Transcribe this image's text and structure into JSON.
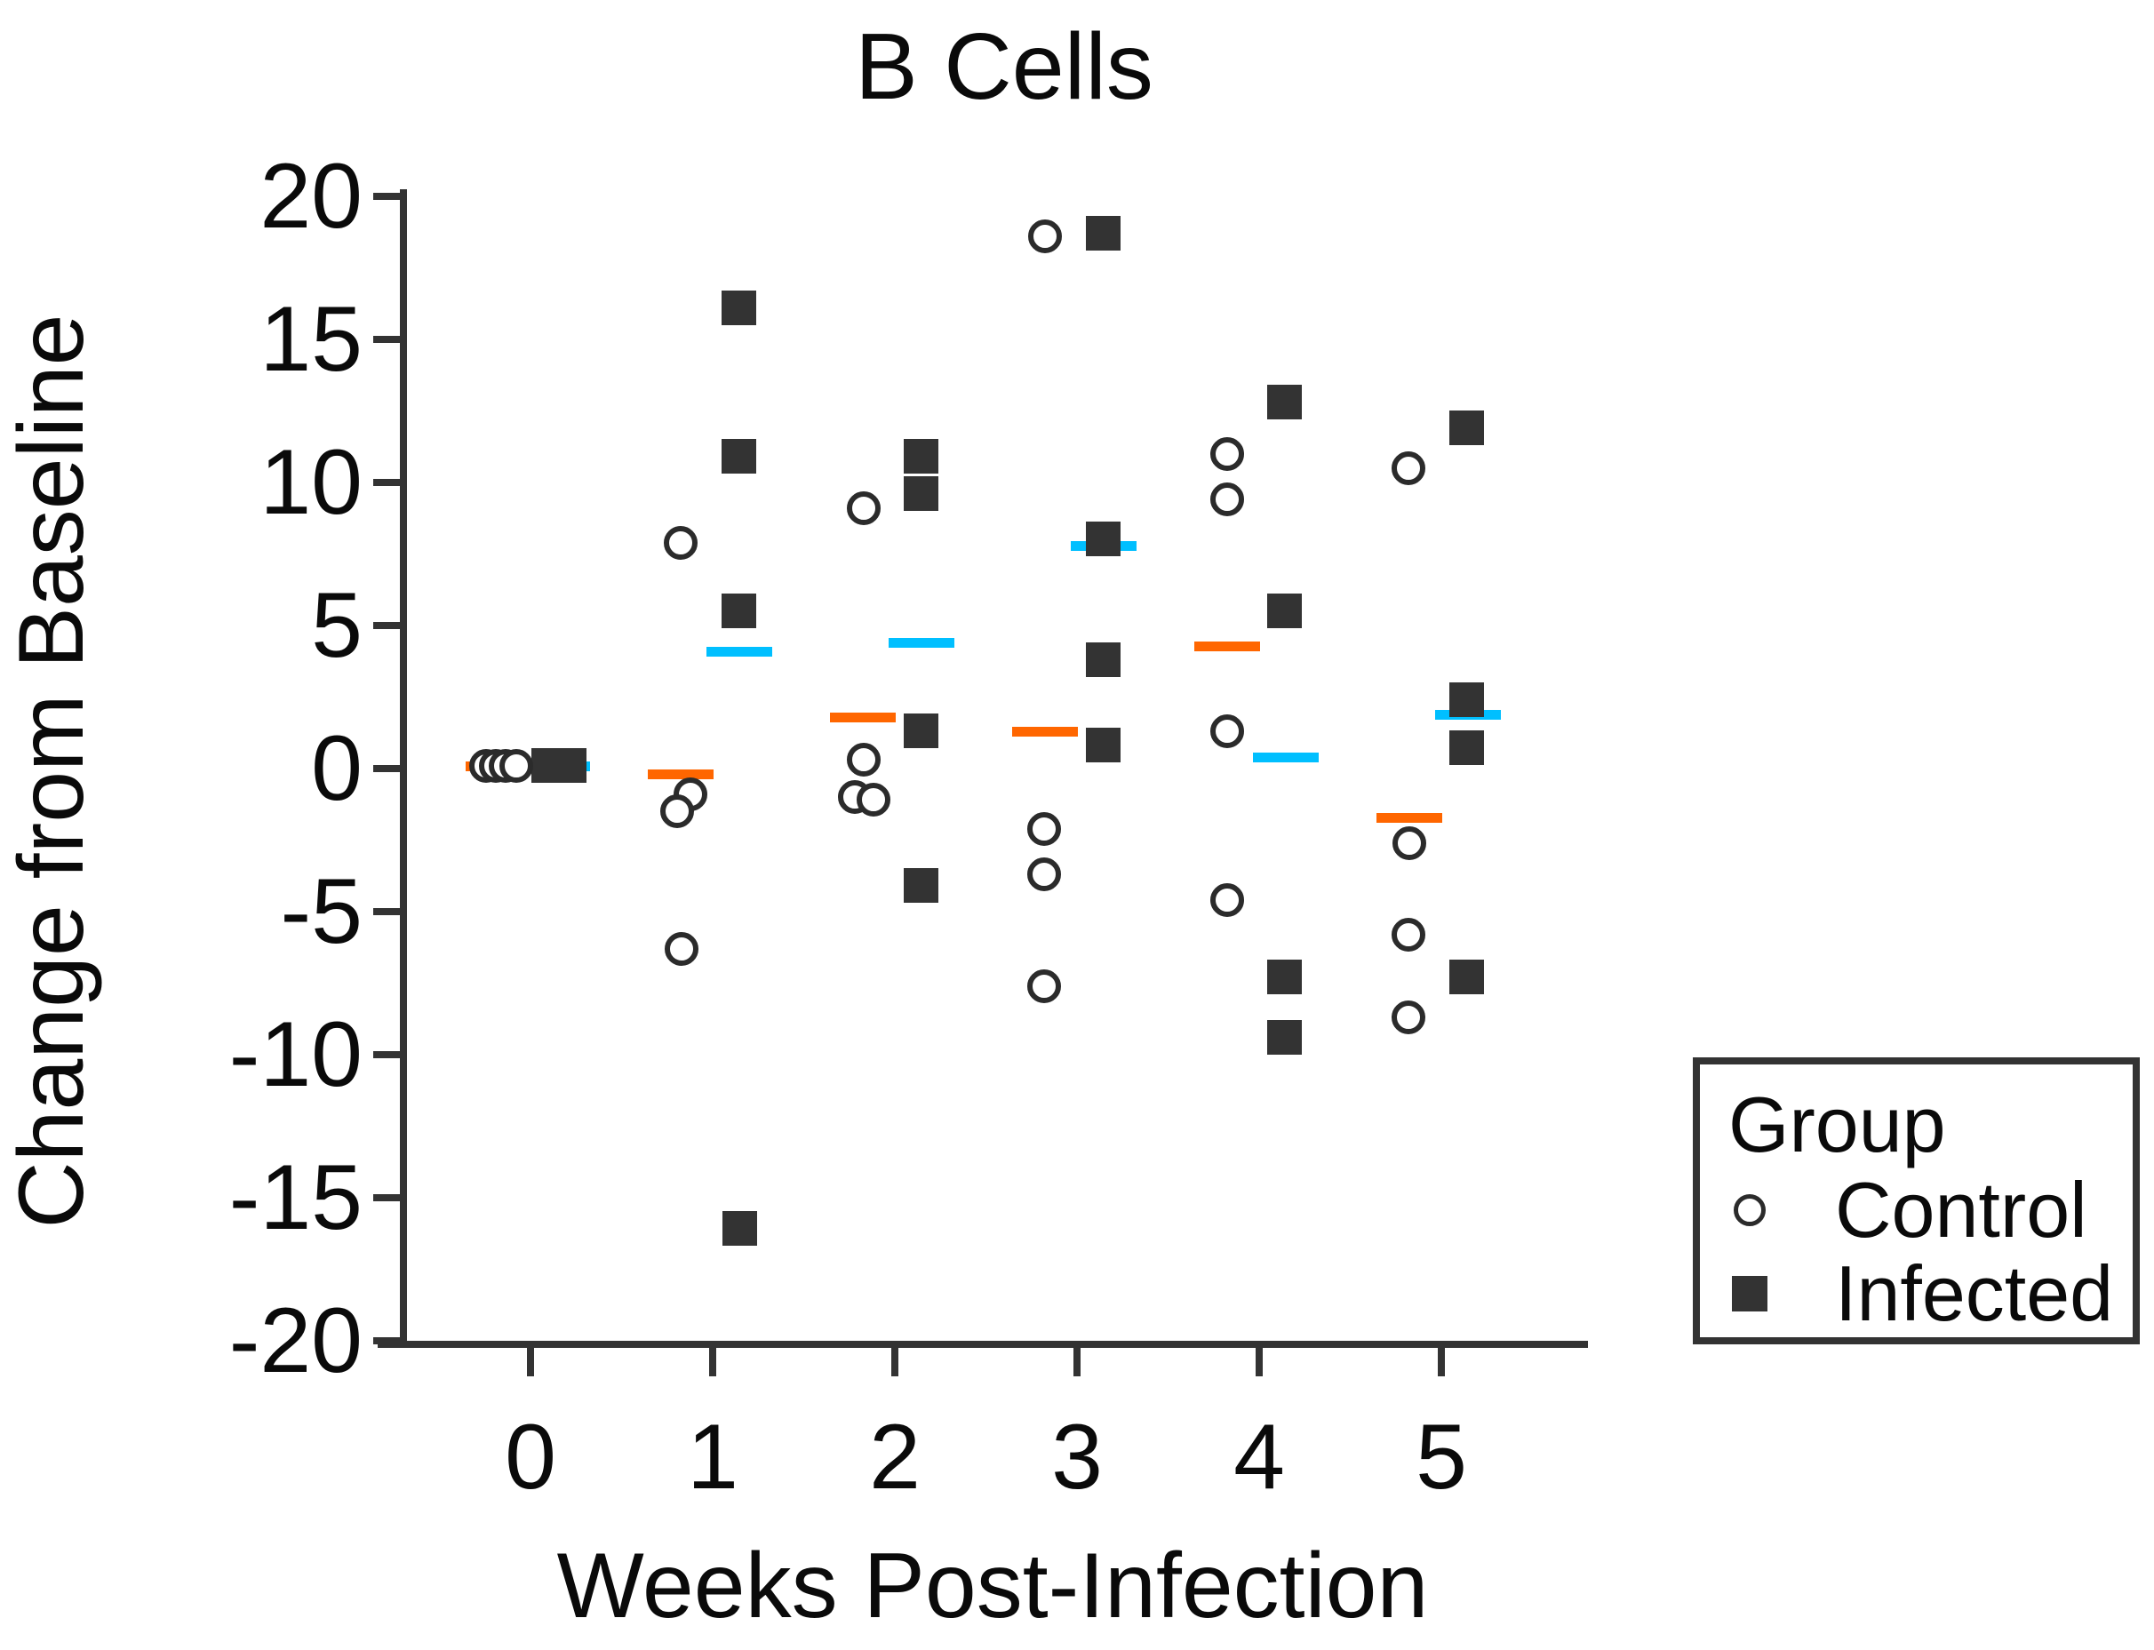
{
  "title": "B Cells",
  "colors": {
    "control_mean_bar": "#FF6600",
    "infected_mean_bar": "#00BFFF",
    "marker_dark": "#333333",
    "axis": "#333333",
    "text": "#0a0a0a"
  },
  "legend": {
    "title": "Group",
    "items": [
      {
        "label": "Control",
        "marker": "open-circle"
      },
      {
        "label": "Infected",
        "marker": "filled-square"
      }
    ]
  },
  "chart_data": {
    "type": "scatter",
    "title": "B Cells",
    "xlabel": "Weeks Post-Infection",
    "ylabel": "Change from Baseline",
    "xlim": [
      -0.7,
      5.8
    ],
    "ylim": [
      -20,
      20
    ],
    "x_ticks": [
      0,
      1,
      2,
      3,
      4,
      5
    ],
    "y_ticks": [
      20,
      15,
      10,
      5,
      0,
      -5,
      -10,
      -15,
      -20
    ],
    "grid": false,
    "legend_position": "outside-bottom-right",
    "series_names": [
      "Control",
      "Infected"
    ],
    "mean_bar_meaning": "group mean per week (orange = Control, cyan = Infected)",
    "weeks": [
      {
        "week": 0,
        "control": [
          {
            "v": 0.1,
            "dx": -0.245
          },
          {
            "v": 0.1,
            "dx": -0.19
          },
          {
            "v": 0.1,
            "dx": -0.135
          },
          {
            "v": 0.1,
            "dx": -0.08
          }
        ],
        "infected": [
          {
            "v": 0.1,
            "dx": 0.1
          },
          {
            "v": 0.1,
            "dx": 0.14
          },
          {
            "v": 0.1,
            "dx": 0.18
          },
          {
            "v": 0.1,
            "dx": 0.215
          }
        ],
        "control_mean": 0.1,
        "infected_mean": 0.1
      },
      {
        "week": 1,
        "control": [
          {
            "v": 7.9,
            "dx": -0.176
          },
          {
            "v": -0.9,
            "dx": -0.122
          },
          {
            "v": -1.5,
            "dx": -0.195
          },
          {
            "v": -6.3,
            "dx": -0.171
          }
        ],
        "infected": [
          {
            "v": 16.1,
            "dx": 0.146
          },
          {
            "v": 10.9,
            "dx": 0.146
          },
          {
            "v": 5.5,
            "dx": 0.146
          },
          {
            "v": -16.1,
            "dx": 0.151
          }
        ],
        "control_mean": -0.2,
        "infected_mean": 4.1
      },
      {
        "week": 2,
        "control": [
          {
            "v": 9.1,
            "dx": -0.171
          },
          {
            "v": 0.3,
            "dx": -0.171
          },
          {
            "v": -1.0,
            "dx": -0.22
          },
          {
            "v": -1.1,
            "dx": -0.117
          }
        ],
        "infected": [
          {
            "v": 10.9,
            "dx": 0.146
          },
          {
            "v": 9.6,
            "dx": 0.146
          },
          {
            "v": 1.3,
            "dx": 0.146
          },
          {
            "v": -4.1,
            "dx": 0.146
          }
        ],
        "control_mean": 1.8,
        "infected_mean": 4.4
      },
      {
        "week": 3,
        "control": [
          {
            "v": 18.6,
            "dx": -0.176
          },
          {
            "v": -2.1,
            "dx": -0.18
          },
          {
            "v": -3.7,
            "dx": -0.18
          },
          {
            "v": -7.6,
            "dx": -0.18
          }
        ],
        "infected": [
          {
            "v": 18.7,
            "dx": 0.146
          },
          {
            "v": 8.0,
            "dx": 0.146
          },
          {
            "v": 3.8,
            "dx": 0.146
          },
          {
            "v": 0.8,
            "dx": 0.146
          }
        ],
        "control_mean": 1.3,
        "infected_mean": 7.8
      },
      {
        "week": 4,
        "control": [
          {
            "v": 11.0,
            "dx": -0.176
          },
          {
            "v": 9.4,
            "dx": -0.176
          },
          {
            "v": 1.3,
            "dx": -0.176
          },
          {
            "v": -4.6,
            "dx": -0.176
          }
        ],
        "infected": [
          {
            "v": 12.8,
            "dx": 0.141
          },
          {
            "v": 5.5,
            "dx": 0.141
          },
          {
            "v": -7.3,
            "dx": 0.141
          },
          {
            "v": -9.4,
            "dx": 0.141
          }
        ],
        "control_mean": 4.3,
        "infected_mean": 0.4
      },
      {
        "week": 5,
        "control": [
          {
            "v": 10.5,
            "dx": -0.18
          },
          {
            "v": -2.6,
            "dx": -0.176
          },
          {
            "v": -5.8,
            "dx": -0.18
          },
          {
            "v": -8.7,
            "dx": -0.18
          }
        ],
        "infected": [
          {
            "v": 11.9,
            "dx": 0.141
          },
          {
            "v": 2.4,
            "dx": 0.141
          },
          {
            "v": 0.7,
            "dx": 0.141
          },
          {
            "v": -7.3,
            "dx": 0.141
          }
        ],
        "control_mean": -1.7,
        "infected_mean": 1.9
      }
    ]
  }
}
